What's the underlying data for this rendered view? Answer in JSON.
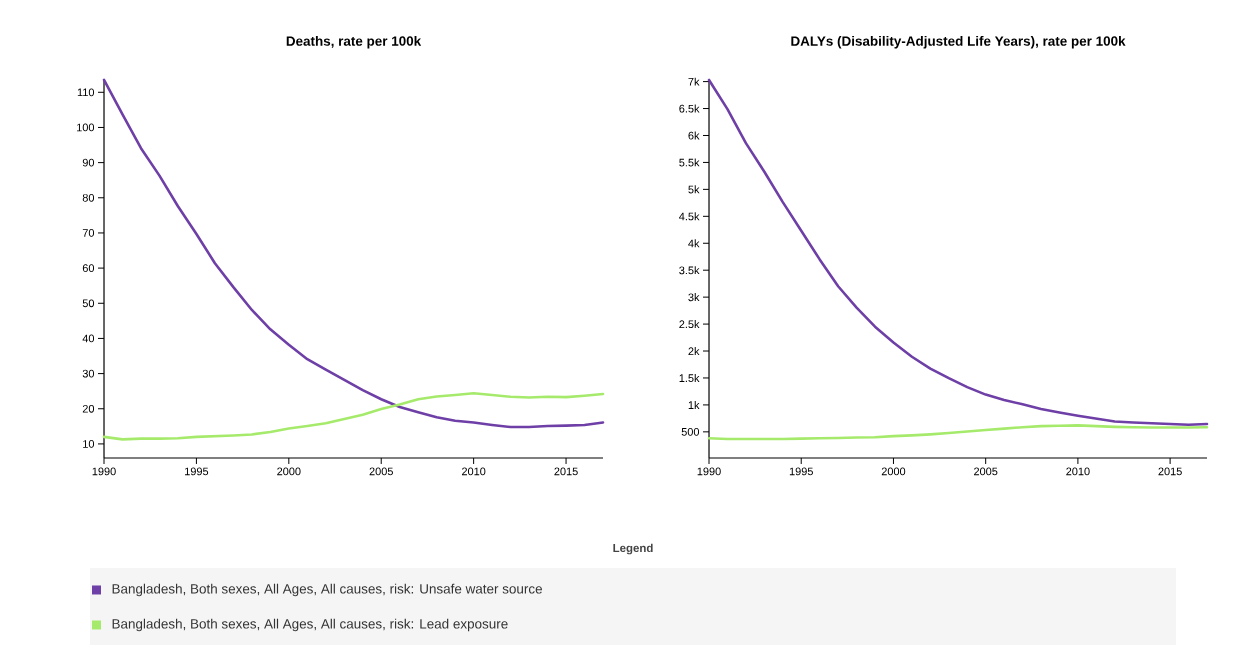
{
  "chart_data": [
    {
      "type": "line",
      "title": "Deaths, rate per 100k",
      "legend_title": "Legend",
      "legend": "bottom",
      "x": [
        1990,
        1991,
        1992,
        1993,
        1994,
        1995,
        1996,
        1997,
        1998,
        1999,
        2000,
        2001,
        2002,
        2003,
        2004,
        2005,
        2006,
        2007,
        2008,
        2009,
        2010,
        2011,
        2012,
        2013,
        2014,
        2015,
        2016,
        2017
      ],
      "series": [
        {
          "name": "Bangladesh, Both sexes, All Ages, All causes, risk: Unsafe water source",
          "color": "#6e3fa6",
          "values": [
            113.5,
            103.7,
            94.1,
            86.3,
            77.6,
            69.7,
            61.4,
            54.6,
            48.1,
            42.6,
            38.2,
            34.1,
            31.1,
            28.2,
            25.3,
            22.7,
            20.5,
            19.0,
            17.6,
            16.6,
            16.1,
            15.4,
            14.8,
            14.8,
            15.1,
            15.2,
            15.4,
            16.1
          ]
        },
        {
          "name": "Bangladesh, Both sexes, All Ages, All causes, risk: Lead exposure",
          "color": "#a6ea6c",
          "values": [
            12.0,
            11.3,
            11.5,
            11.5,
            11.6,
            12.0,
            12.2,
            12.4,
            12.7,
            13.4,
            14.4,
            15.1,
            15.9,
            17.1,
            18.3,
            19.9,
            21.2,
            22.7,
            23.5,
            23.9,
            24.4,
            23.9,
            23.4,
            23.2,
            23.4,
            23.3,
            23.7,
            24.2
          ]
        }
      ],
      "xlim": [
        1990,
        2017
      ],
      "xticks": [
        1990,
        1995,
        2000,
        2005,
        2010,
        2015
      ],
      "ylim": [
        6,
        113.5
      ],
      "yticks": [
        10,
        20,
        30,
        40,
        50,
        60,
        70,
        80,
        90,
        100,
        110
      ],
      "grid": false,
      "marker": "none"
    },
    {
      "type": "line",
      "title": "DALYs (Disability-Adjusted Life Years), rate per 100k",
      "x": [
        1990,
        1991,
        1992,
        1993,
        1994,
        1995,
        1996,
        1997,
        1998,
        1999,
        2000,
        2001,
        2002,
        2003,
        2004,
        2005,
        2006,
        2007,
        2008,
        2009,
        2010,
        2011,
        2012,
        2013,
        2014,
        2015,
        2016,
        2017
      ],
      "series": [
        {
          "color": "#6e3fa6",
          "values": [
            7030,
            6489,
            5858,
            5327,
            4763,
            4232,
            3700,
            3202,
            2804,
            2452,
            2160,
            1894,
            1675,
            1496,
            1330,
            1191,
            1091,
            1011,
            925,
            859,
            799,
            746,
            693,
            673,
            659,
            646,
            633,
            646
          ]
        },
        {
          "color": "#a6ea6c",
          "values": [
            380,
            367,
            367,
            367,
            367,
            374,
            380,
            387,
            394,
            400,
            420,
            434,
            454,
            480,
            507,
            533,
            560,
            586,
            606,
            613,
            620,
            606,
            593,
            586,
            580,
            580,
            580,
            586
          ]
        }
      ],
      "xlim": [
        1990,
        2017
      ],
      "xticks": [
        1990,
        1995,
        2000,
        2005,
        2010,
        2015
      ],
      "ylim": [
        15,
        7030
      ],
      "yticks": [
        500,
        {
          "value": 1000,
          "label": "1k"
        },
        {
          "value": 1500,
          "label": "1.5k"
        },
        {
          "value": 2000,
          "label": "2k"
        },
        {
          "value": 2500,
          "label": "2.5k"
        },
        {
          "value": 3000,
          "label": "3k"
        },
        {
          "value": 3500,
          "label": "3.5k"
        },
        {
          "value": 4000,
          "label": "4k"
        },
        {
          "value": 4500,
          "label": "4.5k"
        },
        {
          "value": 5000,
          "label": "5k"
        },
        {
          "value": 5500,
          "label": "5.5k"
        },
        {
          "value": 6000,
          "label": "6k"
        },
        {
          "value": 6500,
          "label": "6.5k"
        },
        {
          "value": 7000,
          "label": "7k"
        }
      ],
      "grid": false,
      "marker": "none"
    }
  ]
}
